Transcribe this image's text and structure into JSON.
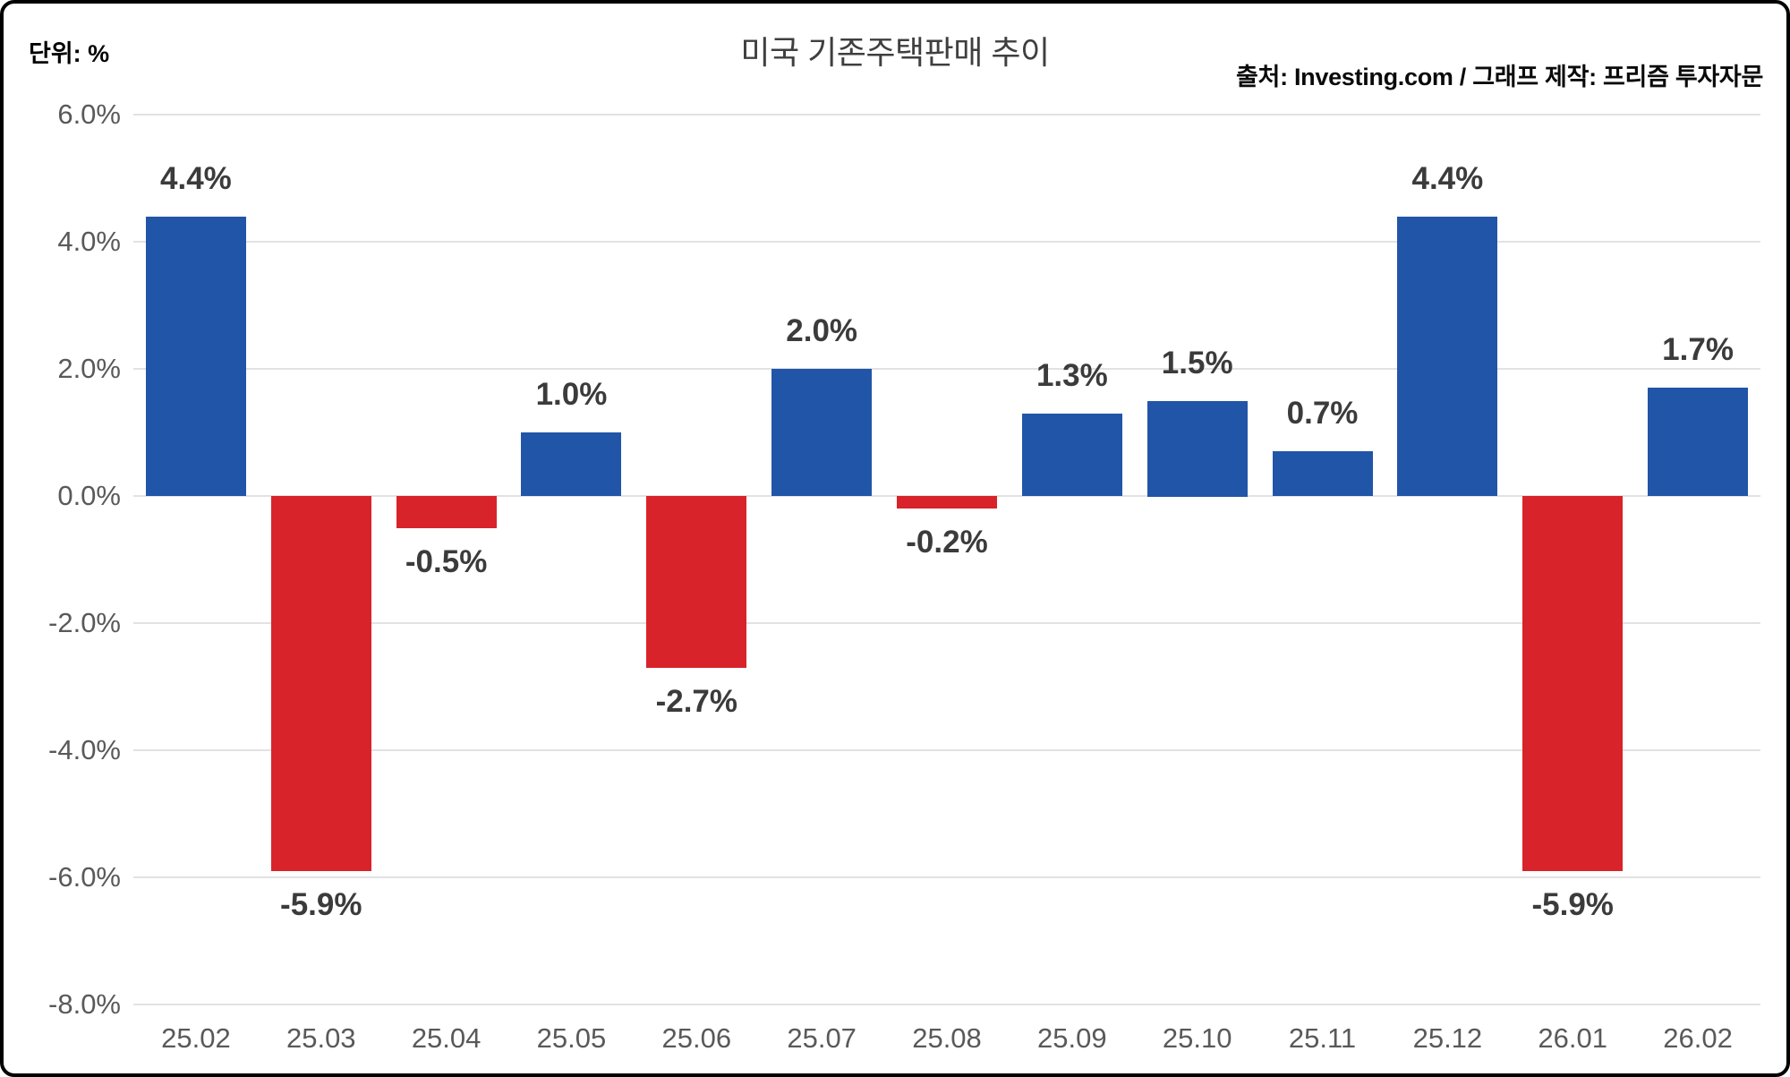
{
  "header": {
    "unit_label": "단위: %",
    "title": "미국 기존주택판매 추이",
    "source_credit": "출처: Investing.com / 그래프 제작: 프리즘 투자자문"
  },
  "chart_data": {
    "type": "bar",
    "title": "미국 기존주택판매 추이",
    "xlabel": "",
    "ylabel": "단위: %",
    "categories": [
      "25.02",
      "25.03",
      "25.04",
      "25.05",
      "25.06",
      "25.07",
      "25.08",
      "25.09",
      "25.10",
      "25.11",
      "25.12",
      "26.01",
      "26.02"
    ],
    "values": [
      4.4,
      -5.9,
      -0.5,
      1.0,
      -2.7,
      2.0,
      -0.2,
      1.3,
      1.5,
      0.7,
      4.4,
      -5.9,
      1.7
    ],
    "bar_labels": [
      "4.4%",
      "-5.9%",
      "-0.5%",
      "1.0%",
      "-2.7%",
      "2.0%",
      "-0.2%",
      "1.3%",
      "1.5%",
      "0.7%",
      "4.4%",
      "-5.9%",
      "1.7%"
    ],
    "y_tick_values": [
      6,
      4,
      2,
      0,
      -2,
      -4,
      -6,
      -8
    ],
    "y_tick_labels": [
      "6.0%",
      "4.0%",
      "2.0%",
      "0.0%",
      "-2.0%",
      "-4.0%",
      "-6.0%",
      "-8.0%"
    ],
    "ylim": [
      -8,
      6
    ],
    "grid": true,
    "legend_position": "none",
    "colors": {
      "positive_bar": "#2155a8",
      "negative_bar": "#d8232a",
      "gridline": "#e2e2e2",
      "tick_text": "#59595b",
      "value_text": "#3b3b3b",
      "frame_border": "#000000",
      "background": "#ffffff"
    }
  }
}
